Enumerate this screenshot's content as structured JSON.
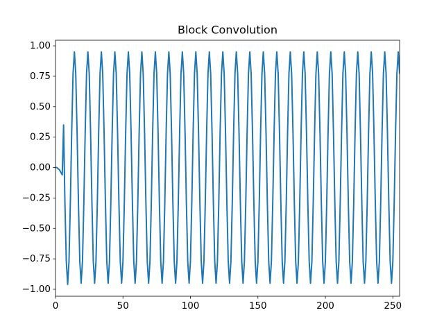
{
  "chart_data": {
    "type": "line",
    "title": "Block Convolution",
    "color": "#1f77b4",
    "xlim": [
      0,
      255
    ],
    "xticks": [
      0,
      50,
      100,
      150,
      200,
      250
    ],
    "ylim": [
      -1.057,
      1.046
    ],
    "yticks": [
      {
        "value": -1,
        "label": "−1.00"
      },
      {
        "value": -0.75,
        "label": "−0.75"
      },
      {
        "value": -0.5,
        "label": "−0.50"
      },
      {
        "value": -0.25,
        "label": "−0.25"
      },
      {
        "value": 0,
        "label": "0.00"
      },
      {
        "value": 0.25,
        "label": "0.25"
      },
      {
        "value": 0.5,
        "label": "0.50"
      },
      {
        "value": 0.75,
        "label": "0.75"
      },
      {
        "value": 1,
        "label": "1.00"
      }
    ],
    "values": [
      0,
      0,
      -0.01,
      -0.02,
      -0.04,
      -0.06,
      0.35,
      -0.3,
      -0.77,
      -0.96,
      -0.77,
      -0.29,
      0.29,
      0.77,
      0.95,
      0.77,
      0.29,
      -0.29,
      -0.77,
      -0.95,
      -0.77,
      -0.29,
      0.29,
      0.77,
      0.95,
      0.77,
      0.29,
      -0.29,
      -0.77,
      -0.95,
      -0.77,
      -0.29,
      0.29,
      0.77,
      0.95,
      0.77,
      0.29,
      -0.29,
      -0.77,
      -0.95,
      -0.77,
      -0.29,
      0.29,
      0.77,
      0.95,
      0.77,
      0.29,
      -0.29,
      -0.77,
      -0.95,
      -0.77,
      -0.29,
      0.29,
      0.77,
      0.95,
      0.77,
      0.29,
      -0.29,
      -0.77,
      -0.95,
      -0.77,
      -0.29,
      0.29,
      0.77,
      0.95,
      0.77,
      0.29,
      -0.29,
      -0.77,
      -0.95,
      -0.77,
      -0.29,
      0.29,
      0.77,
      0.95,
      0.77,
      0.29,
      -0.29,
      -0.77,
      -0.95,
      -0.77,
      -0.29,
      0.29,
      0.77,
      0.95,
      0.77,
      0.29,
      -0.29,
      -0.77,
      -0.95,
      -0.77,
      -0.29,
      0.29,
      0.77,
      0.95,
      0.77,
      0.29,
      -0.29,
      -0.77,
      -0.95,
      -0.77,
      -0.29,
      0.29,
      0.77,
      0.95,
      0.77,
      0.29,
      -0.29,
      -0.77,
      -0.95,
      -0.77,
      -0.29,
      0.29,
      0.77,
      0.95,
      0.77,
      0.29,
      -0.29,
      -0.77,
      -0.95,
      -0.77,
      -0.29,
      0.29,
      0.77,
      0.95,
      0.77,
      0.29,
      -0.29,
      -0.77,
      -0.95,
      -0.77,
      -0.29,
      0.29,
      0.77,
      0.95,
      0.77,
      0.29,
      -0.29,
      -0.77,
      -0.95,
      -0.77,
      -0.29,
      0.29,
      0.77,
      0.95,
      0.77,
      0.29,
      -0.29,
      -0.77,
      -0.95,
      -0.77,
      -0.29,
      0.29,
      0.77,
      0.95,
      0.77,
      0.29,
      -0.29,
      -0.77,
      -0.95,
      -0.77,
      -0.29,
      0.29,
      0.77,
      0.95,
      0.77,
      0.29,
      -0.29,
      -0.77,
      -0.95,
      -0.77,
      -0.29,
      0.29,
      0.77,
      0.95,
      0.77,
      0.29,
      -0.29,
      -0.77,
      -0.95,
      -0.77,
      -0.29,
      0.29,
      0.77,
      0.95,
      0.77,
      0.29,
      -0.29,
      -0.77,
      -0.95,
      -0.77,
      -0.29,
      0.29,
      0.77,
      0.95,
      0.77,
      0.29,
      -0.29,
      -0.77,
      -0.95,
      -0.77,
      -0.29,
      0.29,
      0.77,
      0.95,
      0.77,
      0.29,
      -0.29,
      -0.77,
      -0.95,
      -0.77,
      -0.29,
      0.29,
      0.77,
      0.95,
      0.77,
      0.29,
      -0.29,
      -0.77,
      -0.95,
      -0.77,
      -0.29,
      0.29,
      0.77,
      0.95,
      0.77,
      0.29,
      -0.29,
      -0.77,
      -0.95,
      -0.77,
      -0.29,
      0.29,
      0.77,
      0.95,
      0.77,
      0.29,
      -0.29,
      -0.77,
      -0.95,
      -0.77,
      -0.29,
      0.29,
      0.77,
      0.95,
      0.77,
      0.29,
      -0.29,
      -0.77,
      -0.95,
      -0.77,
      -0.29,
      0.29,
      0.77,
      0.95,
      0.77
    ]
  }
}
